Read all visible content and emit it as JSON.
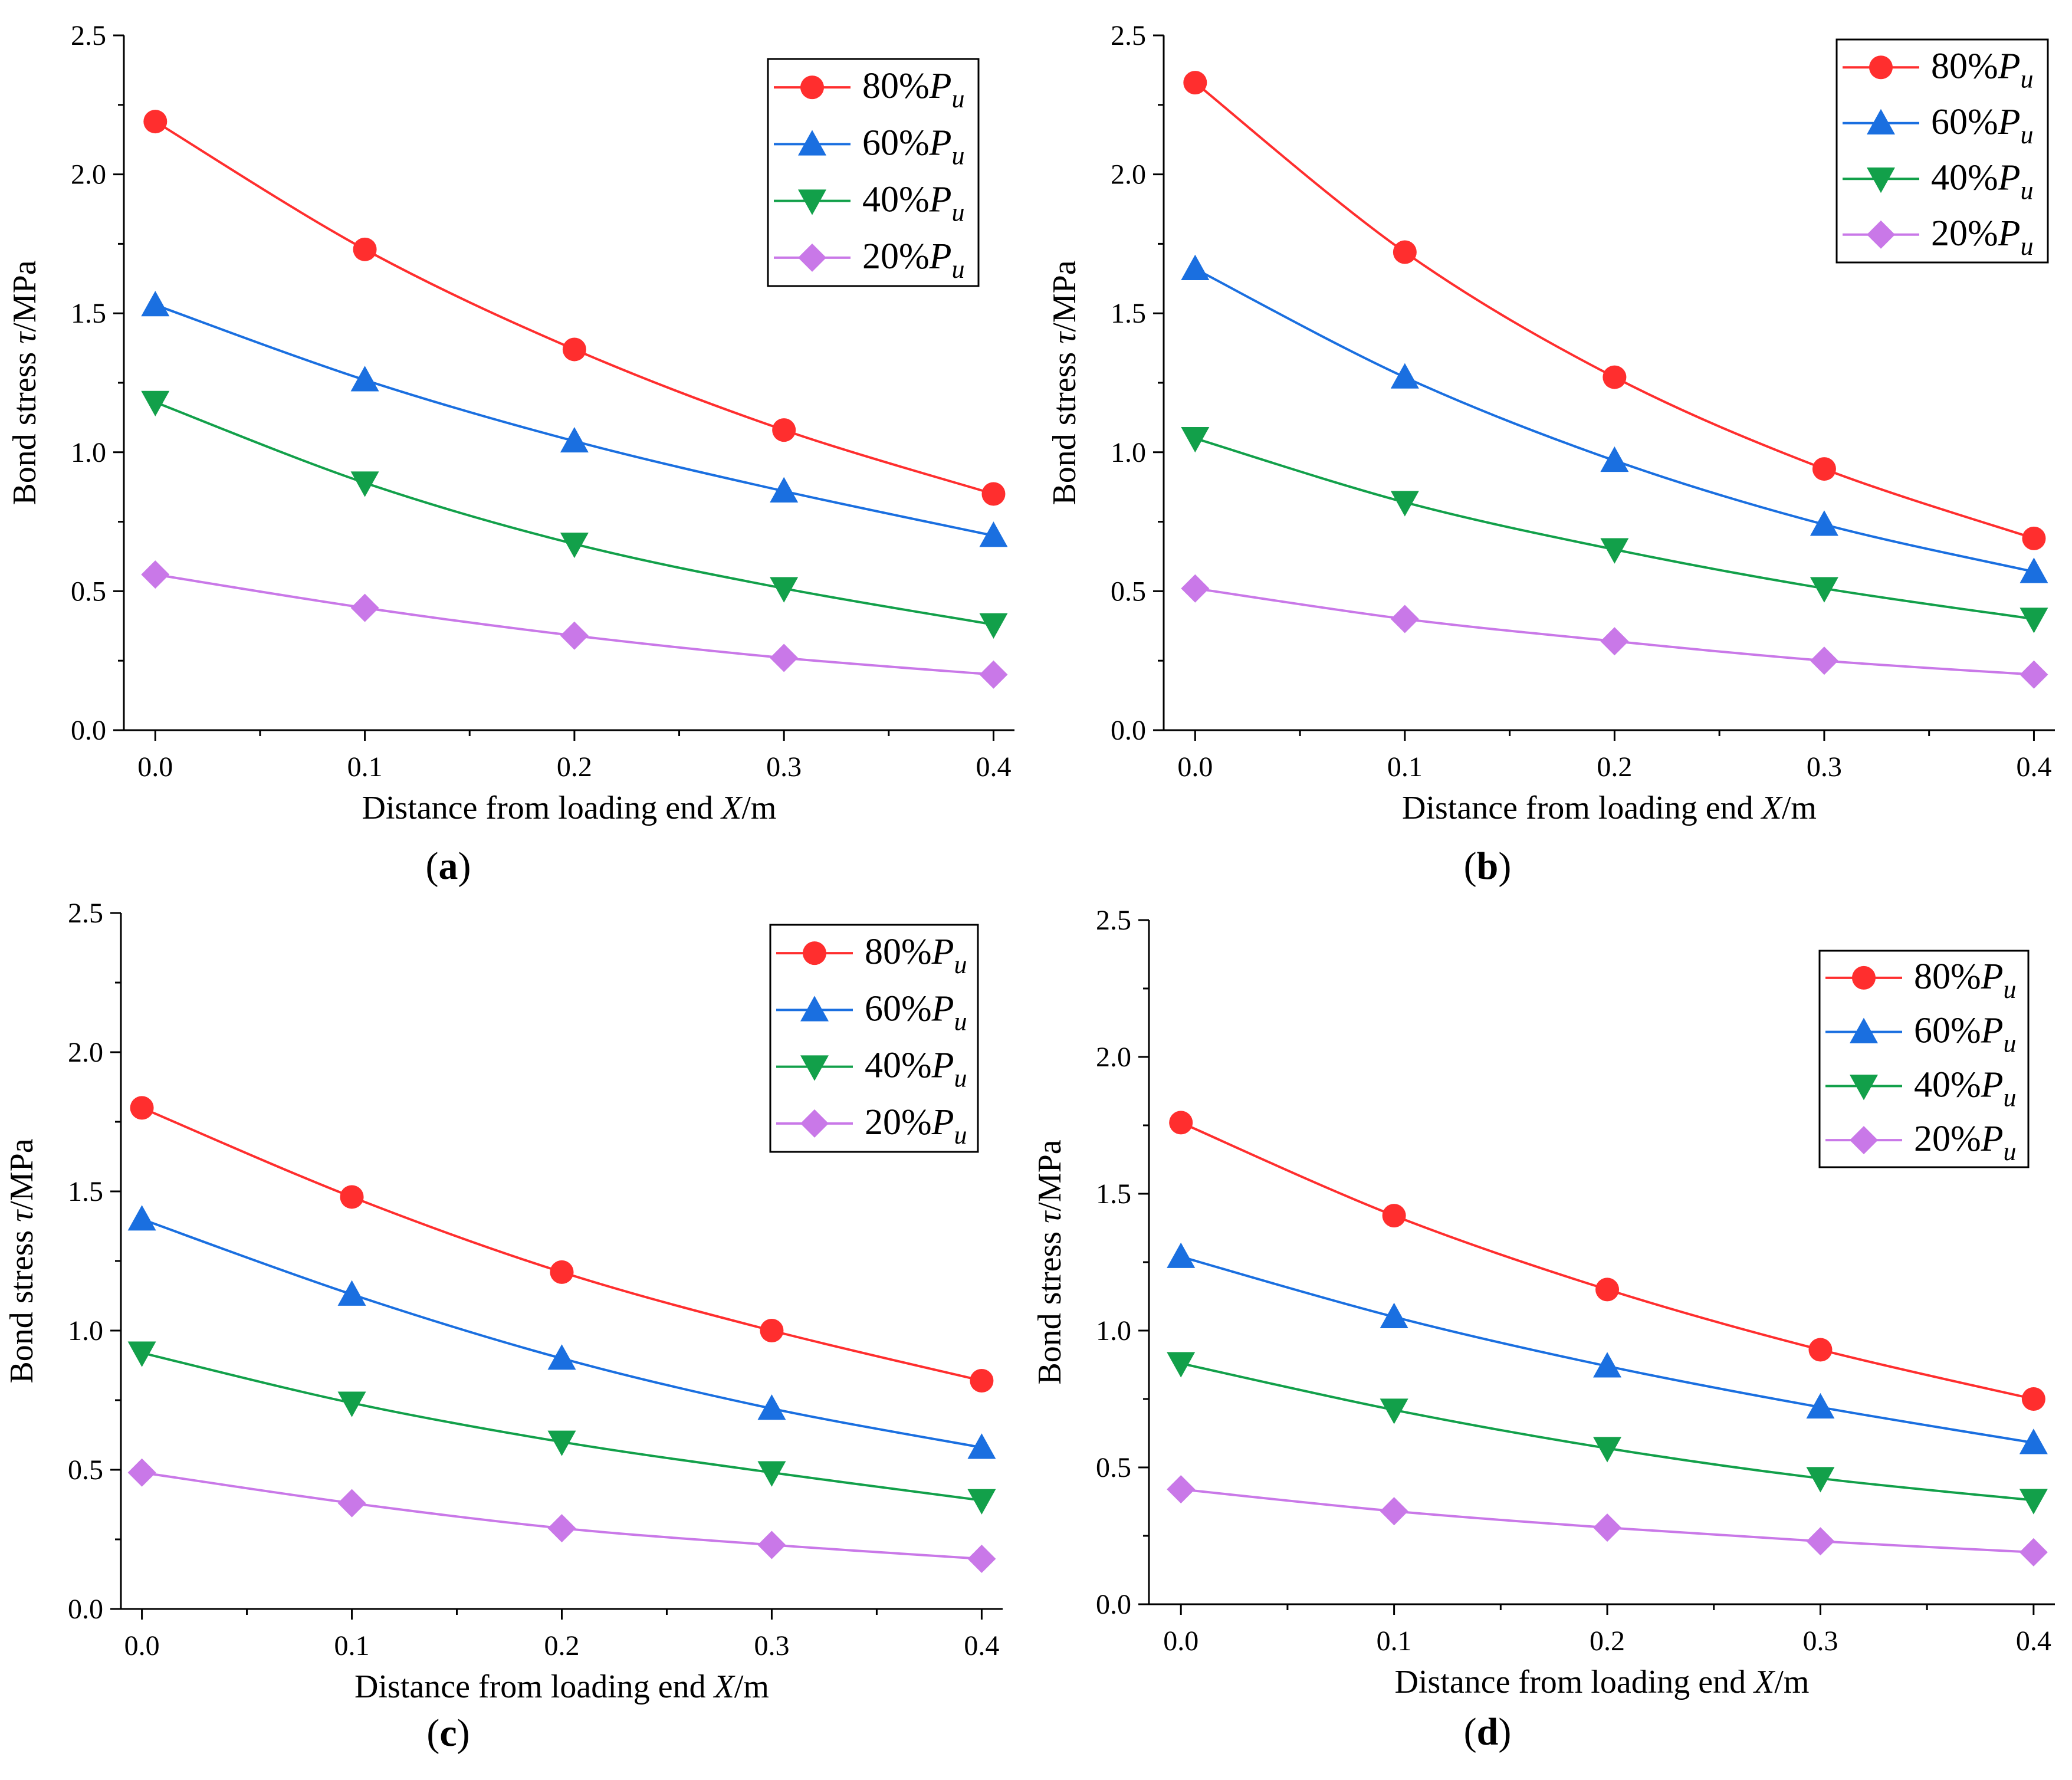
{
  "figure": {
    "legend_labels": [
      {
        "prefix": "80%",
        "var": "P",
        "sub": "u"
      },
      {
        "prefix": "60%",
        "var": "P",
        "sub": "u"
      },
      {
        "prefix": "40%",
        "var": "P",
        "sub": "u"
      },
      {
        "prefix": "20%",
        "var": "P",
        "sub": "u"
      }
    ],
    "series_colors": [
      "#ff2e2e",
      "#1a6fe0",
      "#12a04a",
      "#c978e8"
    ],
    "series_markers": [
      "circle",
      "triangle-up",
      "triangle-down",
      "diamond"
    ],
    "xlabel": {
      "pre": "Distance from loading end ",
      "var": "X",
      "post": "/m"
    },
    "ylabel": {
      "pre": "Bond stress ",
      "var": "τ",
      "post": "/MPa"
    }
  },
  "chart_data": [
    {
      "type": "line",
      "panel": "a",
      "x": [
        0.0,
        0.1,
        0.2,
        0.3,
        0.4
      ],
      "xticks": [
        "0.0",
        "0.1",
        "0.2",
        "0.3",
        "0.4"
      ],
      "yticks": [
        "0.0",
        "0.5",
        "1.0",
        "1.5",
        "2.0",
        "2.5"
      ],
      "xlim": [
        -0.015,
        0.41
      ],
      "ylim": [
        0,
        2.5
      ],
      "legend_position": "top-right",
      "series": [
        {
          "name": "80%Pu",
          "values": [
            2.19,
            1.73,
            1.37,
            1.08,
            0.85
          ]
        },
        {
          "name": "60%Pu",
          "values": [
            1.53,
            1.26,
            1.04,
            0.86,
            0.7
          ]
        },
        {
          "name": "40%Pu",
          "values": [
            1.18,
            0.89,
            0.67,
            0.51,
            0.38
          ]
        },
        {
          "name": "20%Pu",
          "values": [
            0.56,
            0.44,
            0.34,
            0.26,
            0.2
          ]
        }
      ]
    },
    {
      "type": "line",
      "panel": "b",
      "x": [
        0.0,
        0.1,
        0.2,
        0.3,
        0.4
      ],
      "xticks": [
        "0.0",
        "0.1",
        "0.2",
        "0.3",
        "0.4"
      ],
      "yticks": [
        "0.0",
        "0.5",
        "1.0",
        "1.5",
        "2.0",
        "2.5"
      ],
      "xlim": [
        -0.015,
        0.41
      ],
      "ylim": [
        0,
        2.5
      ],
      "legend_position": "top-right",
      "series": [
        {
          "name": "80%Pu",
          "values": [
            2.33,
            1.72,
            1.27,
            0.94,
            0.69
          ]
        },
        {
          "name": "60%Pu",
          "values": [
            1.66,
            1.27,
            0.97,
            0.74,
            0.57
          ]
        },
        {
          "name": "40%Pu",
          "values": [
            1.05,
            0.82,
            0.65,
            0.51,
            0.4
          ]
        },
        {
          "name": "20%Pu",
          "values": [
            0.51,
            0.4,
            0.32,
            0.25,
            0.2
          ]
        }
      ]
    },
    {
      "type": "line",
      "panel": "c",
      "x": [
        0.0,
        0.1,
        0.2,
        0.3,
        0.4
      ],
      "xticks": [
        "0.0",
        "0.1",
        "0.2",
        "0.3",
        "0.4"
      ],
      "yticks": [
        "0.0",
        "0.5",
        "1.0",
        "1.5",
        "2.0",
        "2.5"
      ],
      "xlim": [
        -0.01,
        0.41
      ],
      "ylim": [
        0,
        2.5
      ],
      "legend_position": "top-right",
      "series": [
        {
          "name": "80%Pu",
          "values": [
            1.8,
            1.48,
            1.21,
            1.0,
            0.82
          ]
        },
        {
          "name": "60%Pu",
          "values": [
            1.4,
            1.13,
            0.9,
            0.72,
            0.58
          ]
        },
        {
          "name": "40%Pu",
          "values": [
            0.92,
            0.74,
            0.6,
            0.49,
            0.39
          ]
        },
        {
          "name": "20%Pu",
          "values": [
            0.49,
            0.38,
            0.29,
            0.23,
            0.18
          ]
        }
      ]
    },
    {
      "type": "line",
      "panel": "d",
      "x": [
        0.0,
        0.1,
        0.2,
        0.3,
        0.4
      ],
      "xticks": [
        "0.0",
        "0.1",
        "0.2",
        "0.3",
        "0.4"
      ],
      "yticks": [
        "0.0",
        "0.5",
        "1.0",
        "1.5",
        "2.0",
        "2.5"
      ],
      "xlim": [
        -0.015,
        0.41
      ],
      "ylim": [
        0,
        2.5
      ],
      "legend_position": "top-right",
      "series": [
        {
          "name": "80%Pu",
          "values": [
            1.76,
            1.42,
            1.15,
            0.93,
            0.75
          ]
        },
        {
          "name": "60%Pu",
          "values": [
            1.27,
            1.05,
            0.87,
            0.72,
            0.59
          ]
        },
        {
          "name": "40%Pu",
          "values": [
            0.88,
            0.71,
            0.57,
            0.46,
            0.38
          ]
        },
        {
          "name": "20%Pu",
          "values": [
            0.42,
            0.34,
            0.28,
            0.23,
            0.19
          ]
        }
      ]
    }
  ]
}
